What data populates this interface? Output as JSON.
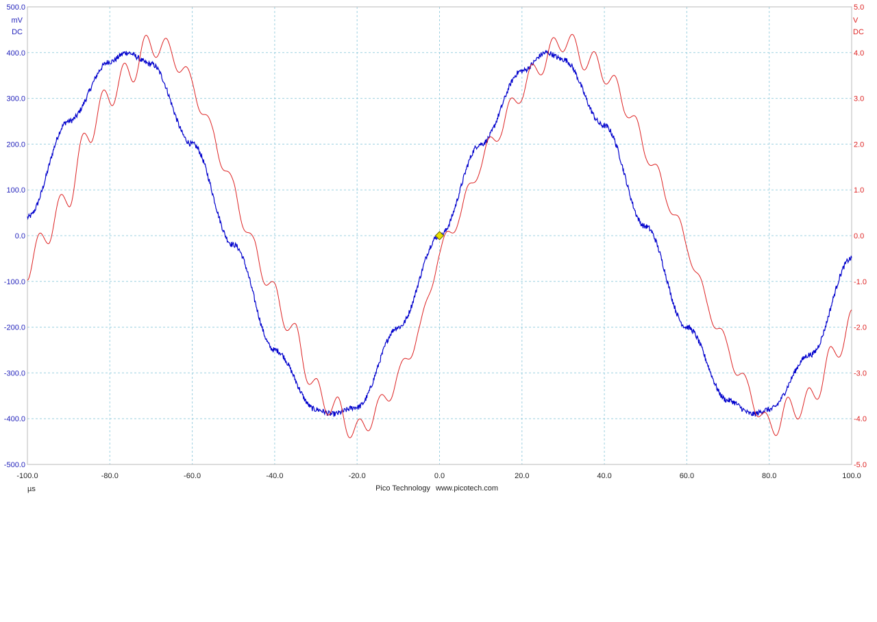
{
  "chart_data": {
    "type": "line",
    "x_unit": "µs",
    "xlim": [
      -100,
      100
    ],
    "x_ticks": [
      "-100.0",
      "-80.0",
      "-60.0",
      "-40.0",
      "-20.0",
      "0.0",
      "20.0",
      "40.0",
      "60.0",
      "80.0",
      "100.0"
    ],
    "left_axis": {
      "unit": "mV",
      "coupling": "DC",
      "ylim": [
        -500,
        500
      ],
      "ticks": [
        "500.0",
        "400.0",
        "300.0",
        "200.0",
        "100.0",
        "0.0",
        "-100.0",
        "-200.0",
        "-300.0",
        "-400.0",
        "-500.0"
      ]
    },
    "right_axis": {
      "unit": "V",
      "coupling": "DC",
      "ylim": [
        -5,
        5
      ],
      "ticks": [
        "5.0",
        "4.0",
        "3.0",
        "2.0",
        "1.0",
        "0.0",
        "-1.0",
        "-2.0",
        "-3.0",
        "-4.0",
        "-5.0"
      ]
    },
    "grid": true,
    "series": [
      {
        "axis": "left",
        "color": "#0000cc",
        "x": [
          -100,
          -90,
          -80,
          -76,
          -70,
          -60,
          -50,
          -40,
          -30,
          -26,
          -20,
          -10,
          0,
          10,
          20,
          26,
          30,
          40,
          50,
          60,
          70,
          76,
          80,
          90,
          100
        ],
        "y": [
          40,
          250,
          380,
          400,
          375,
          200,
          -20,
          -250,
          -380,
          -390,
          -375,
          -200,
          0,
          200,
          360,
          400,
          385,
          240,
          20,
          -200,
          -360,
          -390,
          -380,
          -260,
          -50
        ]
      },
      {
        "axis": "right",
        "color": "#dd2222",
        "x": [
          -100,
          -95,
          -90,
          -85,
          -80,
          -75,
          -70,
          -65,
          -60,
          -55,
          -50,
          -45,
          -40,
          -35,
          -30,
          -25,
          -20,
          -15,
          -10,
          -5,
          0,
          5,
          10,
          15,
          20,
          25,
          30,
          35,
          40,
          45,
          50,
          55,
          60,
          65,
          70,
          75,
          80,
          85,
          90,
          95,
          100
        ],
        "y": [
          -0.7,
          0.1,
          0.9,
          2.3,
          3.1,
          3.6,
          4.2,
          4.0,
          3.3,
          2.2,
          1.0,
          -0.3,
          -1.3,
          -2.2,
          -3.4,
          -3.8,
          -4.3,
          -3.8,
          -3.1,
          -2.1,
          -0.4,
          0.5,
          1.6,
          2.4,
          3.2,
          3.8,
          4.3,
          3.9,
          3.6,
          2.9,
          1.9,
          0.9,
          -0.2,
          -1.5,
          -2.5,
          -3.4,
          -4.2,
          -3.8,
          -3.6,
          -2.7,
          -1.9
        ]
      }
    ],
    "trigger_marker": {
      "x": 0,
      "y": 0,
      "color": "#e8e000"
    }
  },
  "footer": {
    "brand": "Pico Technology",
    "url": "www.picotech.com"
  },
  "colors": {
    "left_axis": "#2222bb",
    "right_axis": "#dd2222",
    "grid": "#9cd0e0",
    "border": "#b8b8b8"
  }
}
